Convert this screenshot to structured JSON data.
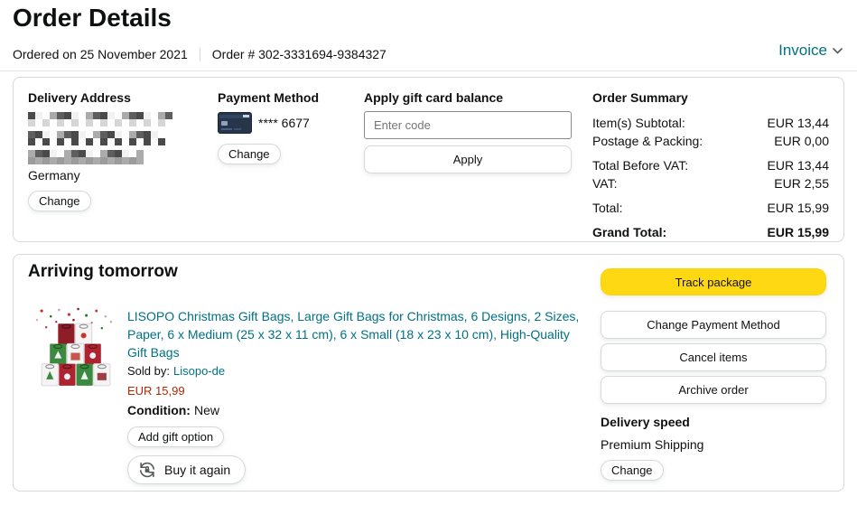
{
  "page": {
    "title": "Order Details",
    "ordered_on": "Ordered on 25 November 2021",
    "order_number": "Order # 302-3331694-9384327",
    "invoice_label": "Invoice"
  },
  "icons": {
    "invoice_dropdown": "chevron-down-icon",
    "payment_card": "credit-card-icon",
    "buy_again": "repeat-arrows-lock-icon"
  },
  "colors": {
    "link": "#007185",
    "price": "#B12704",
    "track_button": "#FFD814",
    "text": "#0F1111",
    "border": "#D5D9D9"
  },
  "summary_card": {
    "delivery_address": {
      "heading": "Delivery Address",
      "country": "Germany",
      "change_label": "Change"
    },
    "payment_method": {
      "heading": "Payment Method",
      "card_digits": "**** 6677",
      "change_label": "Change"
    },
    "gift_card": {
      "heading": "Apply gift card balance",
      "input_placeholder": "Enter code",
      "apply_label": "Apply"
    },
    "order_summary": {
      "heading": "Order Summary",
      "rows": [
        {
          "label": "Item(s) Subtotal:",
          "value": "EUR 13,44"
        },
        {
          "label": "Postage & Packing:",
          "value": "EUR 0,00"
        },
        {
          "label": "Total Before VAT:",
          "value": "EUR 13,44"
        },
        {
          "label": "VAT:",
          "value": "EUR 2,55"
        },
        {
          "label": "Total:",
          "value": "EUR 15,99"
        },
        {
          "label": "Grand Total:",
          "value": "EUR 15,99"
        }
      ]
    }
  },
  "shipment_card": {
    "status_heading": "Arriving tomorrow",
    "product": {
      "title": "LISOPO Christmas Gift Bags, Large Gift Bags for Christmas, 6 Designs, 2 Sizes, Paper, 6 x Medium (25 x 32 x 11 cm), 6 x Small (18 x 23 x 10 cm), High-Quality Gift Bags",
      "sold_by_label": "Sold by:",
      "seller": "Lisopo-de",
      "price": "EUR 15,99",
      "condition_label": "Condition:",
      "condition_value": "New",
      "add_gift_label": "Add gift option",
      "buy_again_label": "Buy it again"
    },
    "actions": {
      "track_package": "Track package",
      "change_payment": "Change Payment Method",
      "cancel_items": "Cancel items",
      "archive_order": "Archive order"
    },
    "delivery_speed": {
      "heading": "Delivery speed",
      "value": "Premium Shipping",
      "change_label": "Change"
    }
  }
}
